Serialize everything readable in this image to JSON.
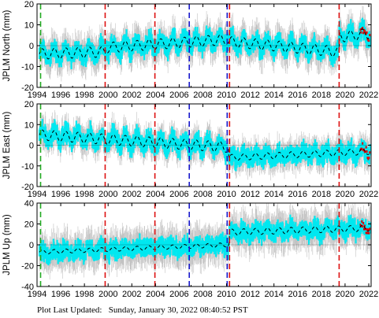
{
  "footer": {
    "label": "Plot Last Updated:",
    "value": "Sunday, January 30, 2022 08:40:52 PST"
  },
  "colors": {
    "data": "#00e8f0",
    "error_bars": "#b4b4b4",
    "model": "#000000",
    "recent": "#dd0000",
    "equipment_change": "#dd1111",
    "earthquake": "#1818cc",
    "start": "#22aa22"
  },
  "chart_data": [
    {
      "type": "scatter",
      "ylabel": "JPLM North (mm)",
      "xlim": [
        1994,
        2022.2
      ],
      "ylim": [
        -20,
        20
      ],
      "yticks": [
        -20,
        -10,
        0,
        10,
        20
      ],
      "xticks": [
        1994,
        1996,
        1998,
        2000,
        2002,
        2004,
        2006,
        2008,
        2010,
        2012,
        2014,
        2016,
        2018,
        2020,
        2022
      ],
      "model_segments": [
        {
          "x": [
            1994.2,
            1999.75
          ],
          "y": [
            -4,
            -3
          ],
          "amp": 2.5
        },
        {
          "x": [
            1999.75,
            2010.1
          ],
          "y": [
            -1,
            3
          ],
          "amp": 2.5
        },
        {
          "x": [
            2010.1,
            2019.5
          ],
          "y": [
            2,
            -3
          ],
          "amp": 2.5
        },
        {
          "x": [
            2019.5,
            2022.1
          ],
          "y": [
            4,
            6
          ],
          "amp": 2.5
        }
      ],
      "scatter_halfwidth": 4.5,
      "error_halfwidth": 9,
      "vlines": [
        {
          "x": 1994.3,
          "kind": "start"
        },
        {
          "x": 1999.75,
          "kind": "equipment_change"
        },
        {
          "x": 2003.95,
          "kind": "equipment_change"
        },
        {
          "x": 2006.85,
          "kind": "earthquake"
        },
        {
          "x": 2010.05,
          "kind": "earthquake"
        },
        {
          "x": 2010.25,
          "kind": "equipment_change"
        },
        {
          "x": 2019.5,
          "kind": "equipment_change"
        }
      ]
    },
    {
      "type": "scatter",
      "ylabel": "JPLM East (mm)",
      "xlim": [
        1994,
        2022.2
      ],
      "ylim": [
        -20,
        20
      ],
      "yticks": [
        -20,
        -10,
        0,
        10,
        20
      ],
      "xticks": [
        1994,
        1996,
        1998,
        2000,
        2002,
        2004,
        2006,
        2008,
        2010,
        2012,
        2014,
        2016,
        2018,
        2020,
        2022
      ],
      "model_segments": [
        {
          "x": [
            1994.2,
            2010.15
          ],
          "y": [
            5,
            -1
          ],
          "amp": 2.5
        },
        {
          "x": [
            2010.15,
            2022.1
          ],
          "y": [
            -6,
            -3
          ],
          "amp": 1.5
        }
      ],
      "scatter_halfwidth": 4.5,
      "error_halfwidth": 8,
      "vlines": [
        {
          "x": 1994.3,
          "kind": "start"
        },
        {
          "x": 1999.75,
          "kind": "equipment_change"
        },
        {
          "x": 2003.95,
          "kind": "equipment_change"
        },
        {
          "x": 2006.85,
          "kind": "earthquake"
        },
        {
          "x": 2010.05,
          "kind": "earthquake"
        },
        {
          "x": 2010.25,
          "kind": "equipment_change"
        },
        {
          "x": 2019.5,
          "kind": "equipment_change"
        }
      ]
    },
    {
      "type": "scatter",
      "ylabel": "JPLM Up (mm)",
      "xlim": [
        1994,
        2022.2
      ],
      "ylim": [
        -40,
        40
      ],
      "yticks": [
        -40,
        -20,
        0,
        20,
        40
      ],
      "xticks": [
        1994,
        1996,
        1998,
        2000,
        2002,
        2004,
        2006,
        2008,
        2010,
        2012,
        2014,
        2016,
        2018,
        2020,
        2022
      ],
      "model_segments": [
        {
          "x": [
            1994.2,
            2010.2
          ],
          "y": [
            -7,
            0
          ],
          "amp": 2
        },
        {
          "x": [
            2010.2,
            2022.1
          ],
          "y": [
            12,
            16
          ],
          "amp": 3
        }
      ],
      "scatter_halfwidth": 9,
      "error_halfwidth": 20,
      "vlines": [
        {
          "x": 1994.3,
          "kind": "start"
        },
        {
          "x": 1999.75,
          "kind": "equipment_change"
        },
        {
          "x": 2003.95,
          "kind": "equipment_change"
        },
        {
          "x": 2006.85,
          "kind": "earthquake"
        },
        {
          "x": 2010.05,
          "kind": "earthquake"
        },
        {
          "x": 2010.25,
          "kind": "equipment_change"
        },
        {
          "x": 2019.5,
          "kind": "equipment_change"
        }
      ]
    }
  ]
}
